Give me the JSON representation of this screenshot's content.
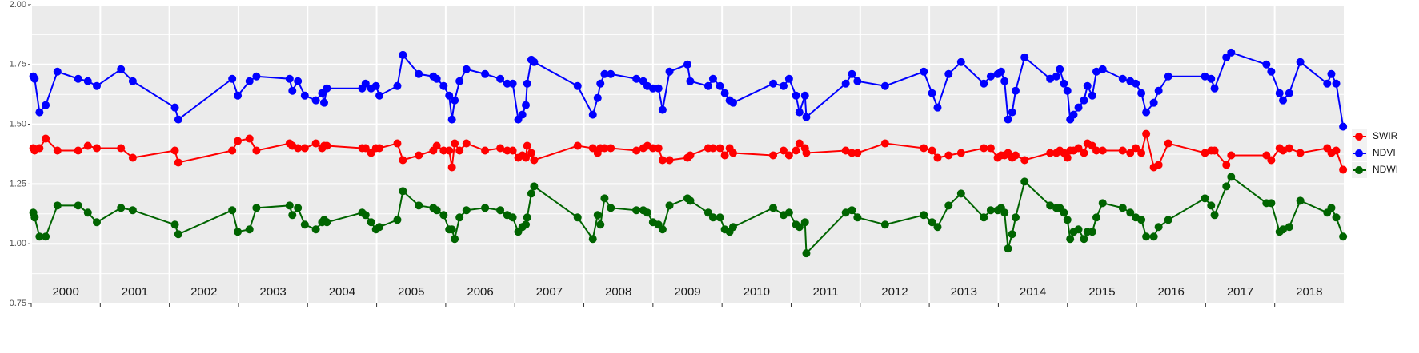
{
  "chart_data": {
    "type": "line",
    "x": [
      2000.03,
      2000.05,
      2000.12,
      2000.21,
      2000.38,
      2000.68,
      2000.82,
      2000.95,
      2001.3,
      2001.47,
      2002.08,
      2002.13,
      2002.91,
      2002.99,
      2003.16,
      2003.26,
      2003.74,
      2003.78,
      2003.86,
      2003.96,
      2004.12,
      2004.21,
      2004.24,
      2004.28,
      2004.79,
      2004.84,
      2004.92,
      2004.99,
      2005.04,
      2005.3,
      2005.38,
      2005.61,
      2005.82,
      2005.87,
      2005.97,
      2006.05,
      2006.09,
      2006.13,
      2006.2,
      2006.3,
      2006.57,
      2006.79,
      2006.89,
      2006.97,
      2007.05,
      2007.11,
      2007.16,
      2007.18,
      2007.24,
      2007.28,
      2007.91,
      2008.13,
      2008.2,
      2008.24,
      2008.3,
      2008.39,
      2008.76,
      2008.86,
      2008.92,
      2009.0,
      2009.08,
      2009.14,
      2009.24,
      2009.5,
      2009.54,
      2009.8,
      2009.87,
      2009.97,
      2010.04,
      2010.11,
      2010.16,
      2010.74,
      2010.89,
      2010.97,
      2011.07,
      2011.12,
      2011.2,
      2011.22,
      2011.79,
      2011.88,
      2011.96,
      2012.36,
      2012.92,
      2013.04,
      2013.12,
      2013.28,
      2013.46,
      2013.79,
      2013.89,
      2013.99,
      2014.04,
      2014.09,
      2014.14,
      2014.2,
      2014.25,
      2014.38,
      2014.75,
      2014.84,
      2014.89,
      2014.95,
      2015.0,
      2015.04,
      2015.09,
      2015.16,
      2015.24,
      2015.29,
      2015.36,
      2015.42,
      2015.51,
      2015.8,
      2015.91,
      2015.99,
      2016.07,
      2016.14,
      2016.25,
      2016.32,
      2016.46,
      2016.99,
      2017.08,
      2017.13,
      2017.3,
      2017.37,
      2017.88,
      2017.95,
      2018.07,
      2018.12,
      2018.21,
      2018.37,
      2018.76,
      2018.82,
      2018.89,
      2018.99
    ],
    "series": [
      {
        "name": "SWIR",
        "color": "#ff0000",
        "values": [
          1.4,
          1.39,
          1.4,
          1.44,
          1.39,
          1.39,
          1.41,
          1.4,
          1.4,
          1.36,
          1.39,
          1.34,
          1.39,
          1.43,
          1.44,
          1.39,
          1.42,
          1.41,
          1.4,
          1.4,
          1.42,
          1.4,
          1.41,
          1.41,
          1.4,
          1.4,
          1.38,
          1.4,
          1.4,
          1.42,
          1.35,
          1.37,
          1.39,
          1.41,
          1.39,
          1.39,
          1.32,
          1.42,
          1.39,
          1.42,
          1.39,
          1.4,
          1.39,
          1.39,
          1.36,
          1.37,
          1.36,
          1.41,
          1.38,
          1.35,
          1.41,
          1.4,
          1.38,
          1.4,
          1.4,
          1.4,
          1.39,
          1.4,
          1.41,
          1.4,
          1.4,
          1.35,
          1.35,
          1.36,
          1.37,
          1.4,
          1.4,
          1.4,
          1.37,
          1.4,
          1.38,
          1.37,
          1.39,
          1.37,
          1.39,
          1.42,
          1.4,
          1.38,
          1.39,
          1.38,
          1.38,
          1.42,
          1.4,
          1.39,
          1.36,
          1.37,
          1.38,
          1.4,
          1.4,
          1.36,
          1.37,
          1.37,
          1.38,
          1.36,
          1.37,
          1.35,
          1.38,
          1.38,
          1.39,
          1.38,
          1.36,
          1.39,
          1.39,
          1.4,
          1.38,
          1.42,
          1.41,
          1.39,
          1.39,
          1.39,
          1.38,
          1.4,
          1.38,
          1.46,
          1.32,
          1.33,
          1.42,
          1.38,
          1.39,
          1.39,
          1.33,
          1.37,
          1.37,
          1.35,
          1.4,
          1.39,
          1.4,
          1.38,
          1.4,
          1.38,
          1.39,
          1.31
        ]
      },
      {
        "name": "NDVI",
        "color": "#0000ff",
        "values": [
          1.7,
          1.69,
          1.55,
          1.58,
          1.72,
          1.69,
          1.68,
          1.66,
          1.73,
          1.68,
          1.57,
          1.52,
          1.69,
          1.62,
          1.68,
          1.7,
          1.69,
          1.64,
          1.68,
          1.62,
          1.6,
          1.63,
          1.59,
          1.65,
          1.65,
          1.67,
          1.65,
          1.66,
          1.62,
          1.66,
          1.79,
          1.71,
          1.7,
          1.69,
          1.66,
          1.62,
          1.52,
          1.6,
          1.68,
          1.73,
          1.71,
          1.69,
          1.67,
          1.67,
          1.52,
          1.54,
          1.58,
          1.67,
          1.77,
          1.76,
          1.66,
          1.54,
          1.61,
          1.67,
          1.71,
          1.71,
          1.69,
          1.68,
          1.66,
          1.65,
          1.65,
          1.56,
          1.72,
          1.75,
          1.68,
          1.66,
          1.69,
          1.66,
          1.63,
          1.6,
          1.59,
          1.67,
          1.66,
          1.69,
          1.62,
          1.55,
          1.62,
          1.53,
          1.67,
          1.71,
          1.68,
          1.66,
          1.72,
          1.63,
          1.57,
          1.71,
          1.76,
          1.67,
          1.7,
          1.71,
          1.72,
          1.68,
          1.52,
          1.55,
          1.64,
          1.78,
          1.69,
          1.7,
          1.73,
          1.67,
          1.64,
          1.52,
          1.54,
          1.57,
          1.6,
          1.66,
          1.62,
          1.72,
          1.73,
          1.69,
          1.68,
          1.67,
          1.63,
          1.55,
          1.59,
          1.64,
          1.7,
          1.7,
          1.69,
          1.65,
          1.78,
          1.8,
          1.75,
          1.72,
          1.63,
          1.6,
          1.63,
          1.76,
          1.67,
          1.71,
          1.67,
          1.49
        ]
      },
      {
        "name": "NDWI",
        "color": "#006400",
        "values": [
          1.13,
          1.11,
          1.03,
          1.03,
          1.16,
          1.16,
          1.13,
          1.09,
          1.15,
          1.14,
          1.08,
          1.04,
          1.14,
          1.05,
          1.06,
          1.15,
          1.16,
          1.12,
          1.15,
          1.08,
          1.06,
          1.09,
          1.1,
          1.09,
          1.13,
          1.12,
          1.09,
          1.06,
          1.07,
          1.1,
          1.22,
          1.16,
          1.15,
          1.14,
          1.12,
          1.06,
          1.06,
          1.02,
          1.11,
          1.14,
          1.15,
          1.14,
          1.12,
          1.11,
          1.05,
          1.07,
          1.08,
          1.11,
          1.21,
          1.24,
          1.11,
          1.02,
          1.12,
          1.08,
          1.19,
          1.15,
          1.14,
          1.14,
          1.13,
          1.09,
          1.08,
          1.06,
          1.16,
          1.19,
          1.18,
          1.13,
          1.11,
          1.11,
          1.06,
          1.05,
          1.07,
          1.15,
          1.12,
          1.13,
          1.08,
          1.07,
          1.09,
          0.96,
          1.13,
          1.14,
          1.11,
          1.08,
          1.12,
          1.09,
          1.07,
          1.16,
          1.21,
          1.11,
          1.14,
          1.14,
          1.15,
          1.13,
          0.98,
          1.04,
          1.11,
          1.26,
          1.16,
          1.15,
          1.15,
          1.13,
          1.1,
          1.02,
          1.05,
          1.06,
          1.02,
          1.05,
          1.05,
          1.11,
          1.17,
          1.15,
          1.13,
          1.11,
          1.1,
          1.03,
          1.03,
          1.07,
          1.1,
          1.19,
          1.16,
          1.12,
          1.24,
          1.28,
          1.17,
          1.17,
          1.05,
          1.06,
          1.07,
          1.18,
          1.13,
          1.15,
          1.11,
          1.03
        ]
      }
    ],
    "periods": [
      2000,
      2001,
      2002,
      2003,
      2004,
      2005,
      2006,
      2007,
      2008,
      2009,
      2010,
      2011,
      2012,
      2013,
      2014,
      2015,
      2016,
      2017,
      2018
    ],
    "xlim": [
      2000,
      2019
    ],
    "xticks": [
      2000,
      2001,
      2002,
      2003,
      2004,
      2005,
      2006,
      2007,
      2008,
      2009,
      2010,
      2011,
      2012,
      2013,
      2014,
      2015,
      2016,
      2017,
      2018
    ],
    "ylim": [
      0.75,
      2.0
    ],
    "yticks": [
      0.75,
      {
        "value": 1,
        "label": "1.00"
      },
      1.25,
      {
        "value": 1.5,
        "label": "1.50"
      },
      1.75,
      {
        "value": 2,
        "label": "2.00"
      }
    ],
    "grid": true,
    "legend": "right"
  }
}
